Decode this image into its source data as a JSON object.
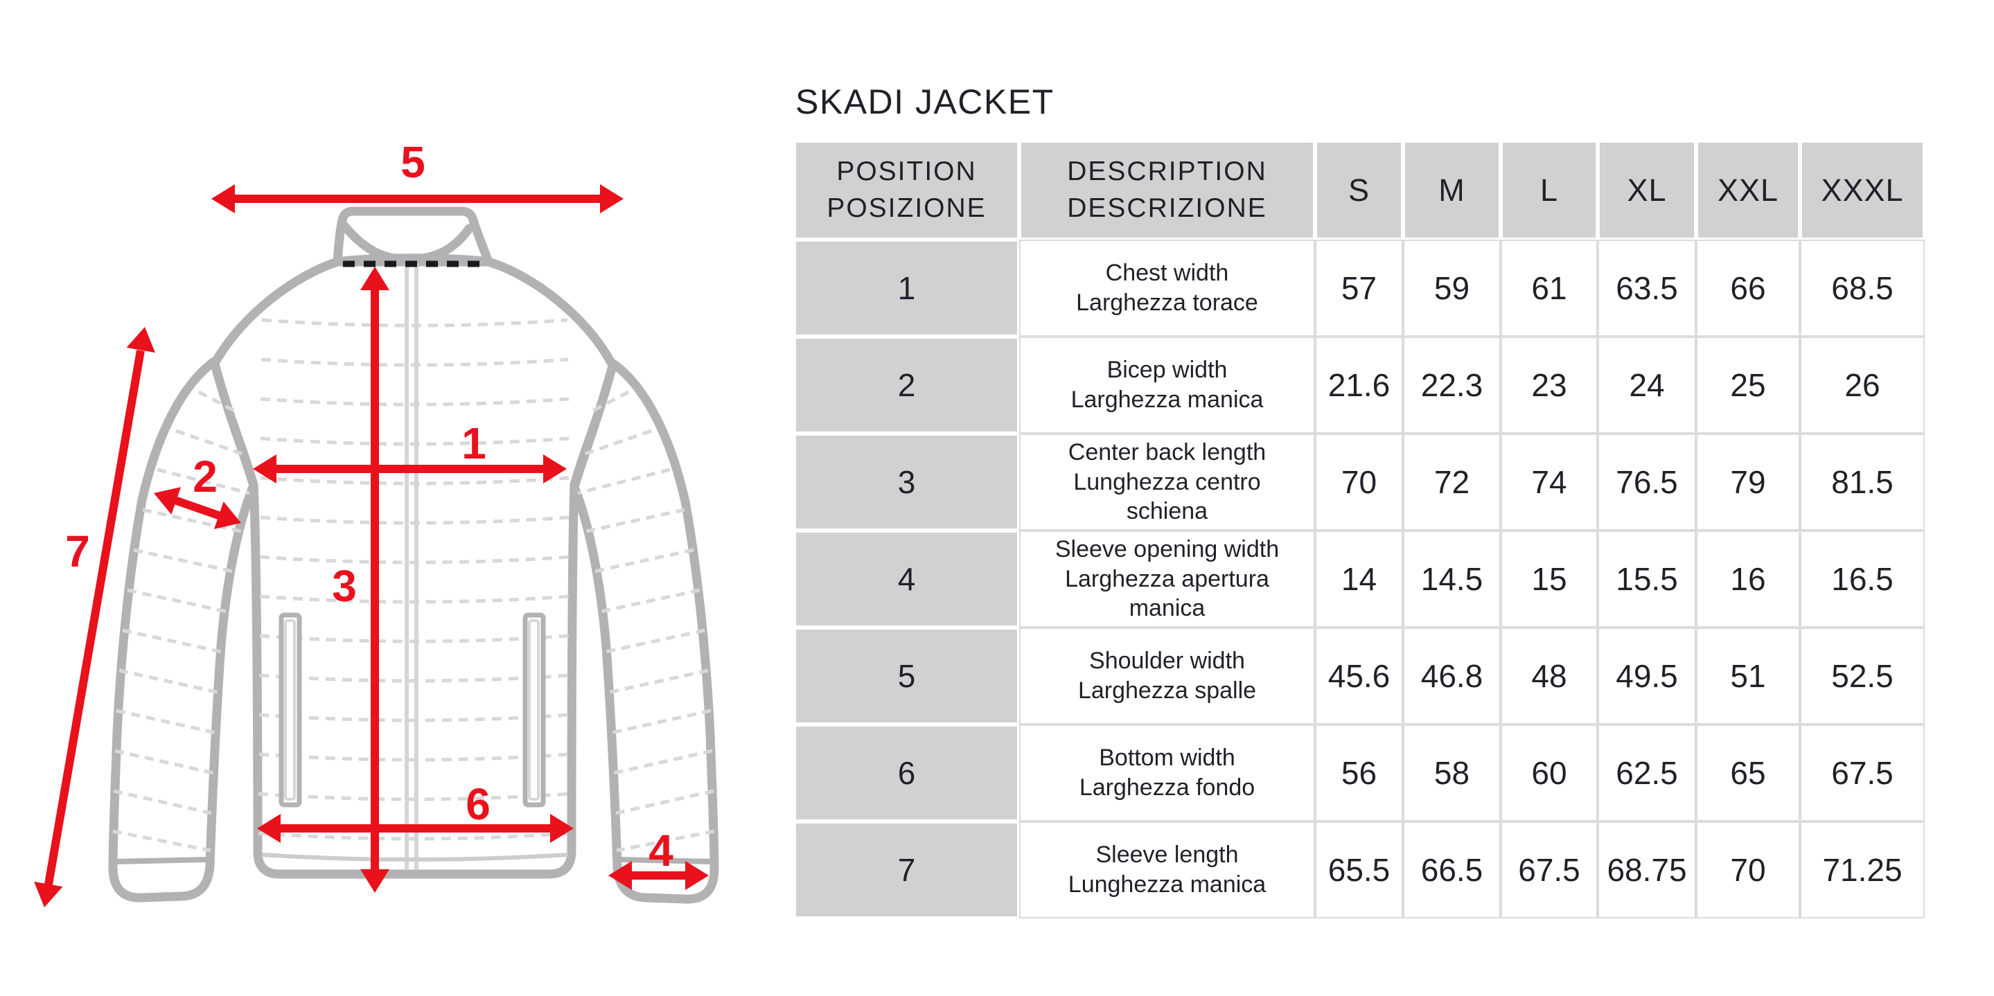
{
  "title": "SKADI JACKET",
  "colors": {
    "accent_red": "#e8111c",
    "cell_gray": "#d2d0d1",
    "grid_line": "#dddbdc",
    "text_dark": "#231f28",
    "jacket_outline": "#b3b1b2",
    "quilt_line": "#d9d7d8",
    "collar_dash_black": "#1c181f"
  },
  "diagram": {
    "position_labels": [
      "1",
      "2",
      "3",
      "4",
      "5",
      "6",
      "7"
    ]
  },
  "table": {
    "header": {
      "position_en": "POSITION",
      "position_it": "POSIZIONE",
      "description_en": "DESCRIPTION",
      "description_it": "DESCRIZIONE",
      "sizes": [
        "S",
        "M",
        "L",
        "XL",
        "XXL",
        "XXXL"
      ]
    },
    "rows": [
      {
        "position": "1",
        "description_en": "Chest width",
        "description_it": "Larghezza torace",
        "values": [
          "57",
          "59",
          "61",
          "63.5",
          "66",
          "68.5"
        ]
      },
      {
        "position": "2",
        "description_en": "Bicep width",
        "description_it": "Larghezza manica",
        "values": [
          "21.6",
          "22.3",
          "23",
          "24",
          "25",
          "26"
        ]
      },
      {
        "position": "3",
        "description_en": "Center back length",
        "description_it": "Lunghezza centro schiena",
        "values": [
          "70",
          "72",
          "74",
          "76.5",
          "79",
          "81.5"
        ]
      },
      {
        "position": "4",
        "description_en": "Sleeve opening width",
        "description_it": "Larghezza apertura manica",
        "values": [
          "14",
          "14.5",
          "15",
          "15.5",
          "16",
          "16.5"
        ]
      },
      {
        "position": "5",
        "description_en": "Shoulder width",
        "description_it": "Larghezza spalle",
        "values": [
          "45.6",
          "46.8",
          "48",
          "49.5",
          "51",
          "52.5"
        ]
      },
      {
        "position": "6",
        "description_en": "Bottom width",
        "description_it": "Larghezza fondo",
        "values": [
          "56",
          "58",
          "60",
          "62.5",
          "65",
          "67.5"
        ]
      },
      {
        "position": "7",
        "description_en": "Sleeve length",
        "description_it": "Lunghezza manica",
        "values": [
          "65.5",
          "66.5",
          "67.5",
          "68.75",
          "70",
          "71.25"
        ]
      }
    ]
  }
}
